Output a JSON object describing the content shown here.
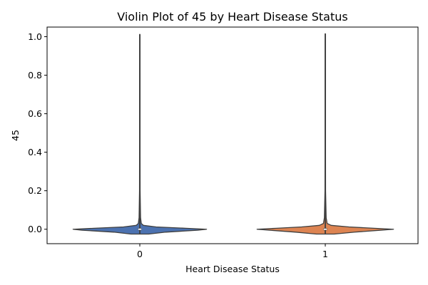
{
  "chart_data": {
    "type": "violin",
    "title": "Violin Plot of 45 by Heart Disease Status",
    "xlabel": "Heart Disease Status",
    "ylabel": "45",
    "categories": [
      "0",
      "1"
    ],
    "ylim": [
      -0.075,
      1.05
    ],
    "yticks": [
      0.0,
      0.2,
      0.4,
      0.6,
      0.8,
      1.0
    ],
    "ytick_labels": [
      "0.0",
      "0.2",
      "0.4",
      "0.6",
      "0.8",
      "1.0"
    ],
    "series": [
      {
        "category": "0",
        "color": "#4c72b0",
        "min": -0.025,
        "max": 1.012,
        "q1": 0.0,
        "median": 0.0,
        "q3": 0.0,
        "density": [
          {
            "y": -0.025,
            "w": 0.12
          },
          {
            "y": -0.015,
            "w": 0.35
          },
          {
            "y": -0.005,
            "w": 0.78
          },
          {
            "y": 0.0,
            "w": 0.9
          },
          {
            "y": 0.005,
            "w": 0.62
          },
          {
            "y": 0.012,
            "w": 0.22
          },
          {
            "y": 0.02,
            "w": 0.05
          },
          {
            "y": 0.03,
            "w": 0.02
          },
          {
            "y": 0.06,
            "w": 0.01
          },
          {
            "y": 0.2,
            "w": 0.004
          },
          {
            "y": 0.5,
            "w": 0.003
          },
          {
            "y": 0.8,
            "w": 0.003
          },
          {
            "y": 1.012,
            "w": 0.002
          }
        ]
      },
      {
        "category": "1",
        "color": "#dd8452",
        "min": -0.025,
        "max": 1.015,
        "q1": 0.0,
        "median": 0.0,
        "q3": 0.0,
        "density": [
          {
            "y": -0.025,
            "w": 0.12
          },
          {
            "y": -0.015,
            "w": 0.4
          },
          {
            "y": -0.005,
            "w": 0.75
          },
          {
            "y": 0.0,
            "w": 0.92
          },
          {
            "y": 0.005,
            "w": 0.66
          },
          {
            "y": 0.012,
            "w": 0.32
          },
          {
            "y": 0.02,
            "w": 0.08
          },
          {
            "y": 0.03,
            "w": 0.025
          },
          {
            "y": 0.06,
            "w": 0.012
          },
          {
            "y": 0.2,
            "w": 0.004
          },
          {
            "y": 0.5,
            "w": 0.003
          },
          {
            "y": 0.8,
            "w": 0.003
          },
          {
            "y": 1.015,
            "w": 0.002
          }
        ]
      }
    ]
  }
}
